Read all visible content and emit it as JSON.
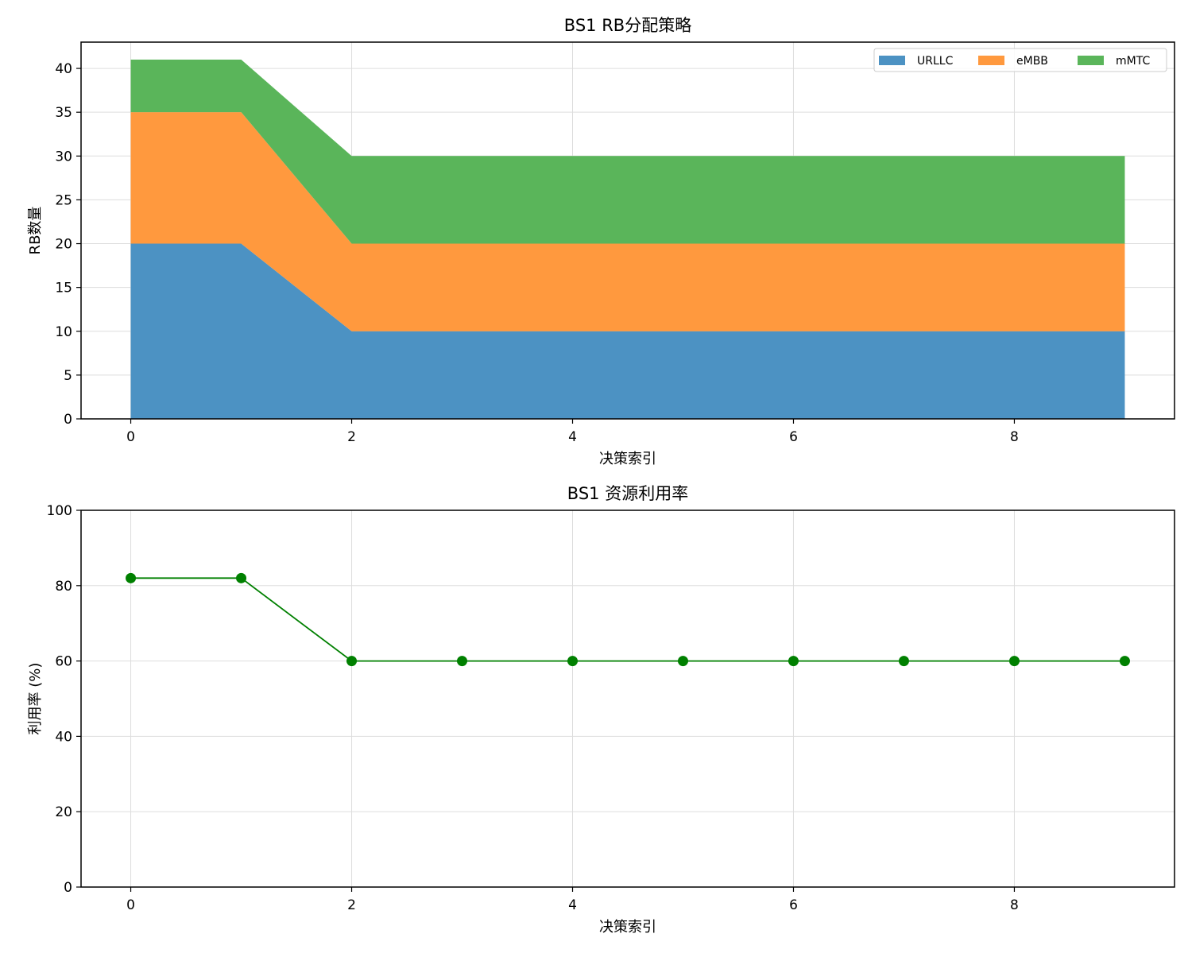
{
  "chart_data": [
    {
      "type": "area",
      "stacked": true,
      "title": "BS1 RB分配策略",
      "xlabel": "决策索引",
      "ylabel": "RB数量",
      "x": [
        0,
        1,
        2,
        3,
        4,
        5,
        6,
        7,
        8,
        9
      ],
      "xlim": [
        -0.45,
        9.45
      ],
      "ylim": [
        0,
        43
      ],
      "xticks": [
        0,
        2,
        4,
        6,
        8
      ],
      "yticks": [
        0,
        5,
        10,
        15,
        20,
        25,
        30,
        35,
        40
      ],
      "grid": true,
      "legend_position": "top-right",
      "series": [
        {
          "name": "URLLC",
          "color": "#4c92c3",
          "values": [
            20,
            20,
            10,
            10,
            10,
            10,
            10,
            10,
            10,
            10
          ]
        },
        {
          "name": "eMBB",
          "color": "#ff993e",
          "values": [
            15,
            15,
            10,
            10,
            10,
            10,
            10,
            10,
            10,
            10
          ]
        },
        {
          "name": "mMTC",
          "color": "#5ab55a",
          "values": [
            6,
            6,
            10,
            10,
            10,
            10,
            10,
            10,
            10,
            10
          ]
        }
      ]
    },
    {
      "type": "line",
      "title": "BS1 资源利用率",
      "xlabel": "决策索引",
      "ylabel": "利用率 (%)",
      "x": [
        0,
        1,
        2,
        3,
        4,
        5,
        6,
        7,
        8,
        9
      ],
      "xlim": [
        -0.45,
        9.45
      ],
      "ylim": [
        0,
        100
      ],
      "xticks": [
        0,
        2,
        4,
        6,
        8
      ],
      "yticks": [
        0,
        20,
        40,
        60,
        80,
        100
      ],
      "grid": true,
      "series": [
        {
          "color": "#008000",
          "marker": "circle",
          "values": [
            82,
            82,
            60,
            60,
            60,
            60,
            60,
            60,
            60,
            60
          ]
        }
      ]
    }
  ]
}
